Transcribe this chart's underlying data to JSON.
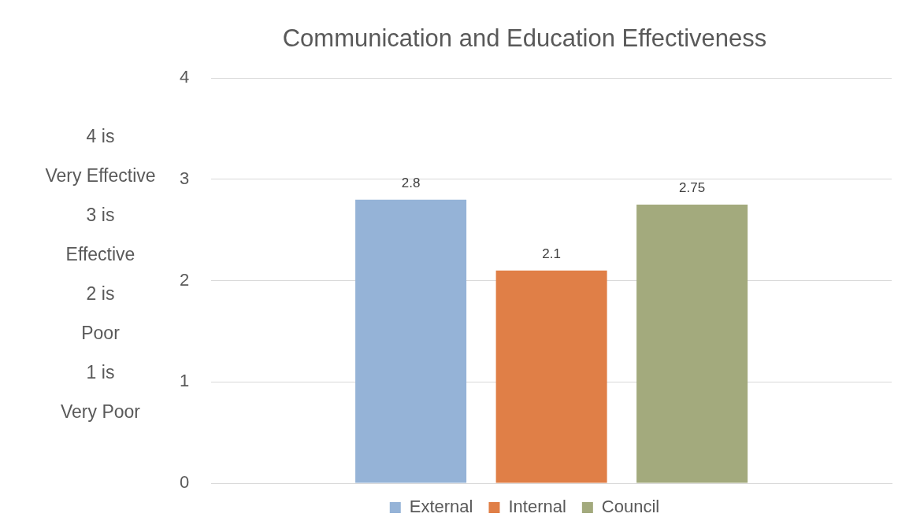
{
  "chart_data": {
    "type": "bar",
    "title": "Communication and Education Effectiveness",
    "ylabel": "4 is\nVery Effective\n3 is\nEffective\n2 is\nPoor\n1 is\nVery Poor",
    "categories": [
      null
    ],
    "series": [
      {
        "name": "External",
        "color": "#95b3d7",
        "values": [
          2.8
        ]
      },
      {
        "name": "Internal",
        "color": "#e07f47",
        "values": [
          2.1
        ]
      },
      {
        "name": "Council",
        "color": "#a3aa7d",
        "values": [
          2.75
        ]
      }
    ],
    "ylim": [
      0,
      4
    ],
    "yticks": [
      0,
      1,
      2,
      3,
      4
    ],
    "grid": "y",
    "legend": "bottom",
    "data_labels": true
  }
}
